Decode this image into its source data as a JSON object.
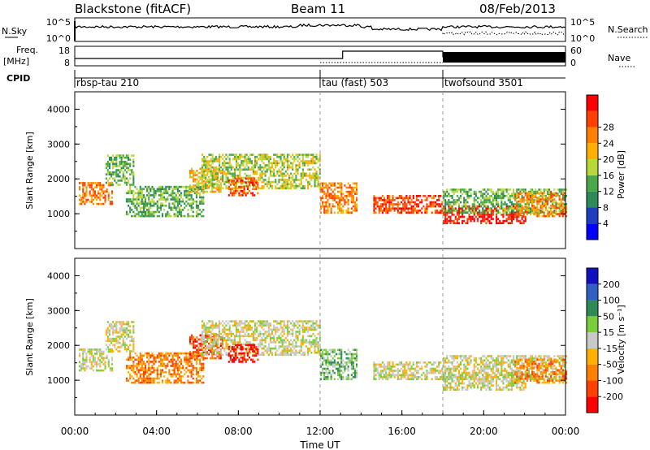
{
  "header": {
    "station": "Blackstone (fitACF)",
    "beam": "Beam 11",
    "date": "08/Feb/2013"
  },
  "summary": {
    "nsky_label": "N.Sky",
    "nsearch_label": "N.Search",
    "freq_label_1": "Freq.",
    "freq_label_2": "[MHz]",
    "nave_label": "Nave",
    "cpid_label": "CPID",
    "noise_ticks": [
      "10^5",
      "10^0"
    ],
    "freq_ticks": [
      "18",
      "8"
    ],
    "nave_ticks": [
      "60",
      "0"
    ]
  },
  "cpid_segments": [
    {
      "start_hour": 0,
      "label": "rbsp-tau 210"
    },
    {
      "start_hour": 12,
      "label": "tau (fast) 503"
    },
    {
      "start_hour": 18,
      "label": "twofsound 3501"
    }
  ],
  "colors": {
    "power": [
      "#0000ff",
      "#1f3fbf",
      "#2e8b57",
      "#4aa84a",
      "#b8d83a",
      "#ffb000",
      "#ff8000",
      "#ff4000",
      "#ff0000"
    ],
    "velocity": [
      "#1010c0",
      "#3060c0",
      "#2e8b57",
      "#7ccd3c",
      "#c8c8c8",
      "#ffb000",
      "#ff8000",
      "#ff4000",
      "#ff0000"
    ]
  },
  "chart_data": [
    {
      "type": "heatmap",
      "name": "power",
      "ylabel": "Slant Range [km]",
      "ylim": [
        0,
        4500
      ],
      "yticks": [
        "1000",
        "2000",
        "3000",
        "4000"
      ],
      "colorbar_label": "Power [dB]",
      "colorbar_ticks": [
        "4",
        "8",
        "12",
        "16",
        "20",
        "24",
        "28"
      ]
    },
    {
      "type": "heatmap",
      "name": "velocity",
      "ylabel": "Slant Range [km]",
      "ylim": [
        0,
        4500
      ],
      "yticks": [
        "1000",
        "2000",
        "3000",
        "4000"
      ],
      "colorbar_label": "Velocity [m s⁻¹]",
      "colorbar_ticks": [
        "200",
        "100",
        "50",
        "15",
        "-15",
        "-50",
        "-100",
        "-200"
      ]
    }
  ],
  "xaxis": {
    "label": "Time UT",
    "ticks": [
      "00:00",
      "04:00",
      "08:00",
      "12:00",
      "16:00",
      "20:00",
      "00:00"
    ]
  }
}
